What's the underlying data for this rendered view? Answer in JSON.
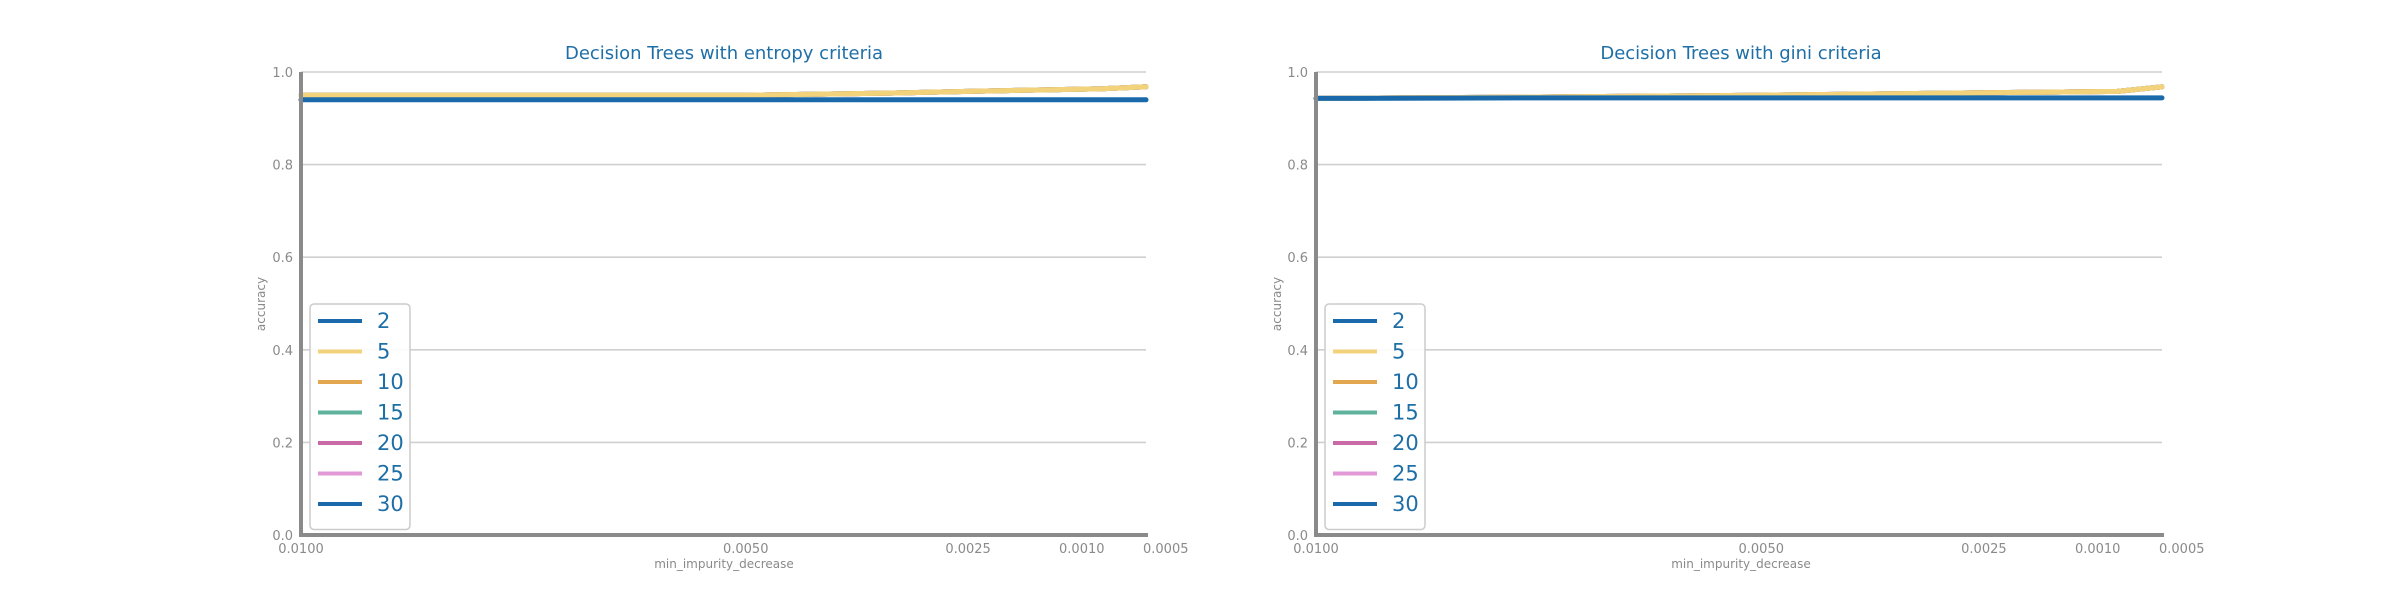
{
  "chart_data": [
    {
      "type": "line",
      "title": "Decision Trees with entropy criteria",
      "xlabel": "min_impurity_decrease",
      "ylabel": "accuracy",
      "xlim": [
        0.01,
        0.0005
      ],
      "ylim": [
        0,
        1.0
      ],
      "yticks": [
        "0.0",
        "0.2",
        "0.4",
        "0.6",
        "0.8",
        "1.0"
      ],
      "xticks": [
        {
          "value": 0.01,
          "label": "0.0100"
        },
        {
          "value": 0.005,
          "label": "0.0050"
        },
        {
          "value": 0.0025,
          "label": "0.0025"
        },
        {
          "value": 0.001,
          "label": "0.0010"
        },
        {
          "value": 0.0005,
          "label": "0.0005"
        }
      ],
      "grid": "horizontal",
      "legend_position": "lower-left",
      "x": [
        0.01,
        0.0075,
        0.005,
        0.0035,
        0.0025,
        0.0015,
        0.001,
        0.0005
      ],
      "series": [
        {
          "name": "2",
          "color": "#1a6aab",
          "values": [
            0.94,
            0.94,
            0.94,
            0.94,
            0.94,
            0.94,
            0.94,
            0.94
          ]
        },
        {
          "name": "5",
          "color": "#f2d37c",
          "values": [
            0.95,
            0.95,
            0.95,
            0.954,
            0.958,
            0.962,
            0.964,
            0.968
          ]
        },
        {
          "name": "10",
          "color": "#e3a74f",
          "values": [
            0.95,
            0.95,
            0.95,
            0.954,
            0.958,
            0.962,
            0.964,
            0.968
          ]
        },
        {
          "name": "15",
          "color": "#5fb39d",
          "values": [
            0.95,
            0.95,
            0.95,
            0.954,
            0.958,
            0.962,
            0.964,
            0.968
          ]
        },
        {
          "name": "20",
          "color": "#c96aa6",
          "values": [
            0.95,
            0.95,
            0.95,
            0.954,
            0.958,
            0.962,
            0.964,
            0.968
          ]
        },
        {
          "name": "25",
          "color": "#e29ad6",
          "values": [
            0.95,
            0.95,
            0.95,
            0.954,
            0.958,
            0.962,
            0.964,
            0.968
          ]
        },
        {
          "name": "30",
          "color": "#1a6aab",
          "values": [
            0.95,
            0.95,
            0.95,
            0.954,
            0.958,
            0.962,
            0.964,
            0.968
          ]
        }
      ]
    },
    {
      "type": "line",
      "title": "Decision Trees with gini criteria",
      "xlabel": "min_impurity_decrease",
      "ylabel": "accuracy",
      "xlim": [
        0.01,
        0.0005
      ],
      "ylim": [
        0,
        1.0
      ],
      "yticks": [
        "0.0",
        "0.2",
        "0.4",
        "0.6",
        "0.8",
        "1.0"
      ],
      "xticks": [
        {
          "value": 0.01,
          "label": "0.0100"
        },
        {
          "value": 0.005,
          "label": "0.0050"
        },
        {
          "value": 0.0025,
          "label": "0.0025"
        },
        {
          "value": 0.001,
          "label": "0.0010"
        },
        {
          "value": 0.0005,
          "label": "0.0005"
        }
      ],
      "grid": "horizontal",
      "legend_position": "lower-left",
      "x": [
        0.01,
        0.0075,
        0.005,
        0.0035,
        0.0025,
        0.0015,
        0.001,
        0.0005
      ],
      "series": [
        {
          "name": "2",
          "color": "#1a6aab",
          "values": [
            0.943,
            0.944,
            0.944,
            0.944,
            0.944,
            0.944,
            0.944,
            0.944
          ]
        },
        {
          "name": "5",
          "color": "#f2d37c",
          "values": [
            0.943,
            0.946,
            0.95,
            0.953,
            0.955,
            0.957,
            0.958,
            0.968
          ]
        },
        {
          "name": "10",
          "color": "#e3a74f",
          "values": [
            0.943,
            0.946,
            0.95,
            0.953,
            0.955,
            0.957,
            0.958,
            0.968
          ]
        },
        {
          "name": "15",
          "color": "#5fb39d",
          "values": [
            0.943,
            0.946,
            0.95,
            0.953,
            0.955,
            0.957,
            0.958,
            0.968
          ]
        },
        {
          "name": "20",
          "color": "#c96aa6",
          "values": [
            0.943,
            0.946,
            0.95,
            0.953,
            0.955,
            0.957,
            0.958,
            0.968
          ]
        },
        {
          "name": "25",
          "color": "#e29ad6",
          "values": [
            0.943,
            0.946,
            0.95,
            0.953,
            0.955,
            0.957,
            0.958,
            0.968
          ]
        },
        {
          "name": "30",
          "color": "#1a6aab",
          "values": [
            0.943,
            0.946,
            0.95,
            0.953,
            0.955,
            0.957,
            0.958,
            0.968
          ]
        }
      ]
    }
  ]
}
